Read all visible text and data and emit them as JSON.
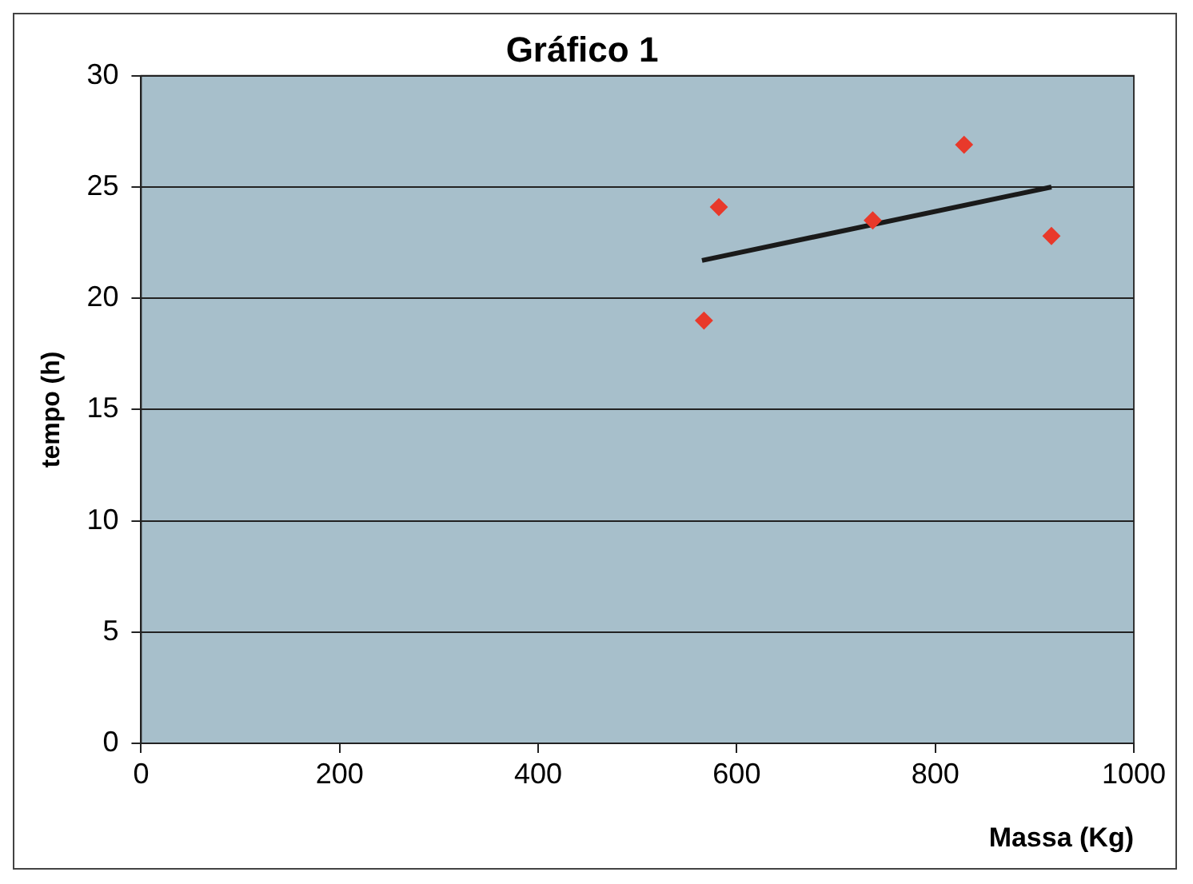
{
  "chart_data": {
    "type": "scatter",
    "title": "Gráfico 1",
    "xlabel": "Massa (Kg)",
    "ylabel": "tempo (h)",
    "xlim": [
      0,
      1000
    ],
    "xticks": [
      0,
      200,
      400,
      600,
      800,
      1000
    ],
    "ylim": [
      0,
      30
    ],
    "yticks": [
      0,
      5,
      10,
      15,
      20,
      25,
      30
    ],
    "grid": "y",
    "legend": false,
    "marker": "diamond",
    "series": [
      {
        "color": "#e8392b",
        "x": [
          567,
          582,
          737,
          829,
          917
        ],
        "values": [
          19.0,
          24.1,
          23.5,
          26.9,
          22.8
        ]
      },
      {
        "type": "line",
        "color": "#1a1a1a",
        "marker": "none",
        "x": [
          565,
          917
        ],
        "values": [
          21.7,
          25.0
        ]
      }
    ]
  }
}
